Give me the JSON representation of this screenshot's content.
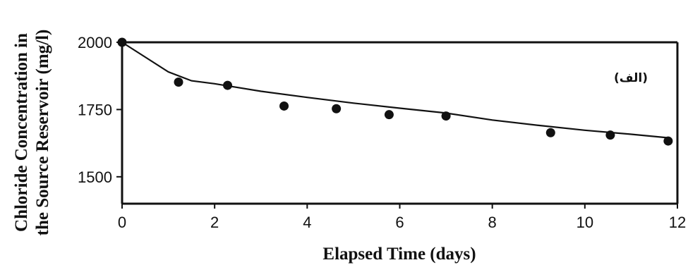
{
  "chart_data": {
    "type": "scatter",
    "title": "",
    "xlabel": "Elapsed Time (days)",
    "ylabel_lines": [
      "Chloride Concentration in",
      "the Source Reservoir (mg/l)"
    ],
    "annotation": "(الف)",
    "xlim": [
      0,
      12
    ],
    "ylim": [
      1400,
      2000
    ],
    "x_ticks": [
      0,
      2,
      4,
      6,
      8,
      10,
      12
    ],
    "y_ticks": [
      1500,
      1750,
      2000
    ],
    "grid": false,
    "legend": "none",
    "series": [
      {
        "kind": "points",
        "x": [
          0,
          1.22,
          2.28,
          3.5,
          4.63,
          5.77,
          7.0,
          9.26,
          10.55,
          11.8
        ],
        "y": [
          2000,
          1852,
          1840,
          1763,
          1753,
          1731,
          1726,
          1664,
          1655,
          1633
        ]
      },
      {
        "kind": "fitted-curve",
        "x": [
          0,
          0.5,
          1.0,
          1.5,
          2.0,
          3.0,
          4.0,
          5.0,
          6.0,
          7.0,
          8.0,
          9.0,
          10.0,
          11.0,
          11.8
        ],
        "y": [
          2000,
          1945,
          1890,
          1857,
          1846,
          1818,
          1795,
          1774,
          1755,
          1737,
          1711,
          1691,
          1673,
          1658,
          1645
        ]
      }
    ]
  }
}
